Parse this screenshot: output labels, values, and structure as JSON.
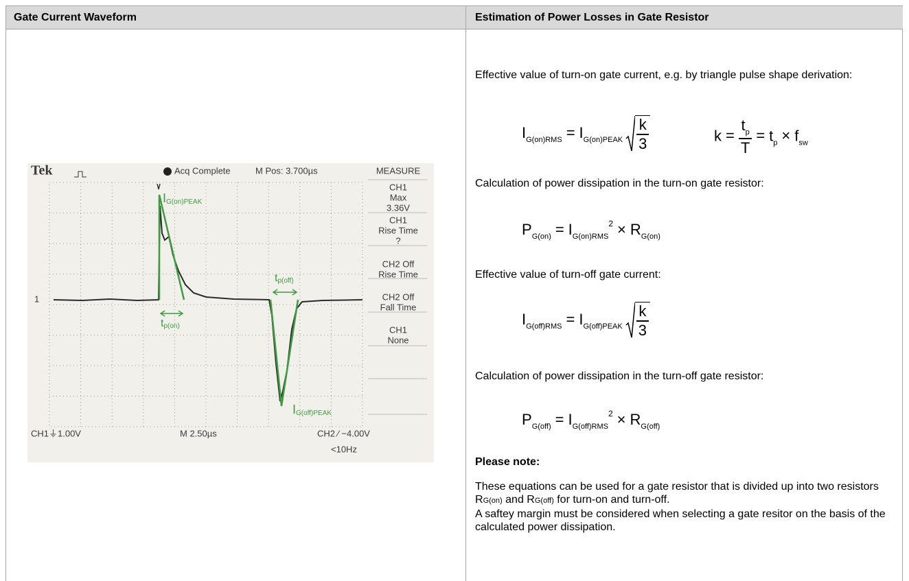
{
  "header": {
    "left": "Gate Current Waveform",
    "right": "Estimation of Power Losses in Gate Resistor"
  },
  "scope": {
    "brand": "Tek",
    "status": "Acq Complete",
    "position": "M Pos: 3.700µs",
    "menu_title": "MEASURE",
    "menu_items": [
      [
        "CH1",
        "Max",
        "3.36V"
      ],
      [
        "CH1",
        "Rise Time",
        "?"
      ],
      [
        "CH2 Off",
        "Rise Time"
      ],
      [
        "CH2 Off",
        "Fall Time"
      ],
      [
        "CH1",
        "None"
      ]
    ],
    "channel_marker": "1",
    "ch1_scale": "CH1⏚1.00V",
    "timebase": "M 2.50µs",
    "trigger": "CH2 ∕ −4.00V",
    "frequency": "<10Hz",
    "labels": {
      "on_peak": {
        "main": "I",
        "sub": "G(on)PEAK"
      },
      "on_width": {
        "main": "t",
        "sub": "p(on)"
      },
      "off_width": {
        "main": "t",
        "sub": "p(off)"
      },
      "off_peak": {
        "main": "I",
        "sub": "G(off)PEAK"
      }
    }
  },
  "content": {
    "intro_on": "Effective value of turn-on gate current, e.g. by triangle pulse shape derivation:",
    "eq_ion": {
      "lhs": "I",
      "lhs_sub": "G(on)RMS",
      "eq": "=",
      "rhs": "I",
      "rhs_sub": "G(on)PEAK",
      "num": "k",
      "den": "3"
    },
    "eq_k": {
      "lhs": "k",
      "eq": "=",
      "num": "t",
      "num_sub": "p",
      "den": "T",
      "t": "t",
      "t_sub": "p",
      "times": "×",
      "f": "f",
      "f_sub": "sw"
    },
    "calc_on": "Calculation of power dissipation in the turn-on gate resistor:",
    "eq_pon": {
      "lhs": "P",
      "lhs_sub": "G(on)",
      "eq": "=",
      "i": "I",
      "i_sub": "G(on)RMS",
      "power": "2",
      "times": "×",
      "r": "R",
      "r_sub": "G(on)"
    },
    "intro_off": "Effective value of turn-off gate current:",
    "eq_ioff": {
      "lhs": "I",
      "lhs_sub": "G(off)RMS",
      "eq": "=",
      "rhs": "I",
      "rhs_sub": "G(off)PEAK",
      "num": "k",
      "den": "3"
    },
    "calc_off": "Calculation of power dissipation in the turn-off gate resistor:",
    "eq_poff": {
      "lhs": "P",
      "lhs_sub": "G(off)",
      "eq": "=",
      "i": "I",
      "i_sub": "G(off)RMS",
      "power": "2",
      "times": "×",
      "r": "R",
      "r_sub": "G(off)"
    },
    "note_title": "Please note:",
    "note_parts": [
      "These equations can be used for a gate resistor that is divided up into two resistors",
      "R",
      "G(on)",
      "and",
      "R",
      "G(off)",
      "for turn-on and turn-off."
    ],
    "note_margin": "A saftey margin must be considered when selecting a gate resitor on the basis of the calculated power dissipation."
  }
}
